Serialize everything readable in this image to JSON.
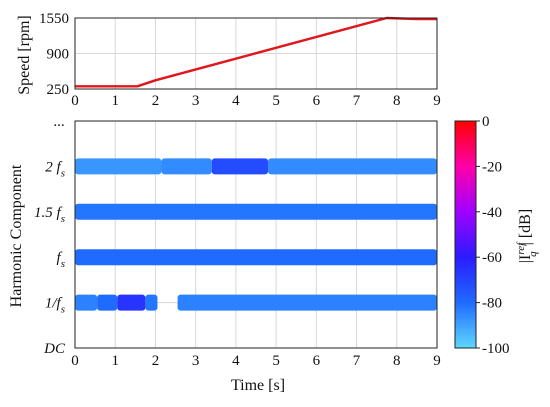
{
  "chart_data": [
    {
      "type": "line",
      "xlabel": "",
      "ylabel": "Speed [rpm]",
      "xlim": [
        0,
        9
      ],
      "ylim": [
        250,
        1550
      ],
      "xticks": [
        "0",
        "1",
        "2",
        "3",
        "4",
        "5",
        "6",
        "7",
        "8",
        "9"
      ],
      "yticks": [
        "250",
        "900",
        "1550"
      ],
      "grid": true,
      "series": [
        {
          "color": "#e0161b",
          "x": [
            0,
            1.55,
            2.0,
            7.75,
            8.5,
            9.0
          ],
          "y": [
            300,
            300,
            410,
            1550,
            1530,
            1530
          ]
        }
      ]
    },
    {
      "type": "heatmap",
      "xlabel": "Time [s]",
      "ylabel": "Harmonic Component",
      "xlim": [
        0,
        9
      ],
      "xticks": [
        "0",
        "1",
        "2",
        "3",
        "4",
        "5",
        "6",
        "7",
        "8",
        "9"
      ],
      "grid": true,
      "ylevels": [
        {
          "label": "DC",
          "value": 0
        },
        {
          "label": "1/f",
          "sub": "s",
          "value": 1
        },
        {
          "label": "f",
          "sub": "s",
          "value": 2
        },
        {
          "label": "1.5 f",
          "sub": "s",
          "value": 3
        },
        {
          "label": "2 f",
          "sub": "s",
          "value": 4
        },
        {
          "label": "...",
          "value": 5
        }
      ],
      "bands": [
        {
          "level": 4,
          "segments": [
            [
              0,
              2.15,
              -88
            ],
            [
              2.15,
              3.4,
              -86
            ],
            [
              3.4,
              4.8,
              -72
            ],
            [
              4.8,
              9.0,
              -86
            ]
          ]
        },
        {
          "level": 3,
          "segments": [
            [
              0,
              9.0,
              -82
            ]
          ]
        },
        {
          "level": 2,
          "segments": [
            [
              0,
              9.0,
              -80
            ]
          ]
        },
        {
          "level": 1,
          "segments": [
            [
              0,
              0.55,
              -84
            ],
            [
              0.55,
              1.05,
              -80
            ],
            [
              1.05,
              1.75,
              -66
            ],
            [
              1.75,
              2.05,
              -82
            ],
            [
              2.55,
              9.0,
              -84
            ]
          ]
        }
      ],
      "colorbar": {
        "label": "|I",
        "label_sup": "ref",
        "label_sub": "q",
        "label_unit": "| [dB]",
        "range": [
          -100,
          0
        ],
        "ticks": [
          "0",
          "-20",
          "-40",
          "-60",
          "-80",
          "-100"
        ],
        "colors": [
          "#ff0000",
          "#ff00aa",
          "#a000ff",
          "#2a1cff",
          "#1f6bff",
          "#5fd7ff"
        ]
      }
    }
  ]
}
